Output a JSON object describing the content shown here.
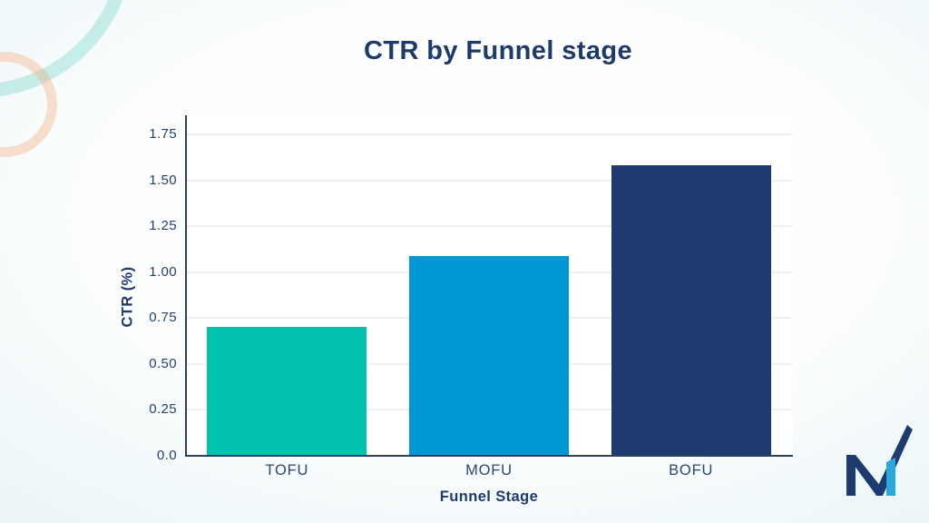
{
  "title": "CTR by Funnel stage",
  "chart_data": {
    "type": "bar",
    "title": "CTR by Funnel stage",
    "xlabel": "Funnel Stage",
    "ylabel": "CTR (%)",
    "categories": [
      "TOFU",
      "MOFU",
      "BOFU"
    ],
    "values": [
      0.7,
      1.09,
      1.58
    ],
    "bar_colors": [
      "#00c2ad",
      "#0097d4",
      "#1d3b6e"
    ],
    "ylim": [
      0,
      1.85
    ],
    "ytick_values": [
      0,
      0.25,
      0.5,
      0.75,
      1.0,
      1.25,
      1.5,
      1.75
    ],
    "ytick_labels": [
      "0.0",
      "0.25",
      "0.50",
      "0.75",
      "1.00",
      "1.25",
      "1.50",
      "1.75"
    ],
    "grid": "horizontal",
    "legend": "none",
    "text_color": "#27406f",
    "title_color": "#1d3a6d"
  },
  "branding": {
    "logo_icon": "m-checkmark-logo",
    "navy": "#1d3b6e",
    "light_blue": "#29a8e0"
  },
  "decorations": {
    "teal_ring_color": "#4dcab7",
    "peach_ring_color": "#f4a674",
    "background_tint": "#e7f2f8"
  }
}
